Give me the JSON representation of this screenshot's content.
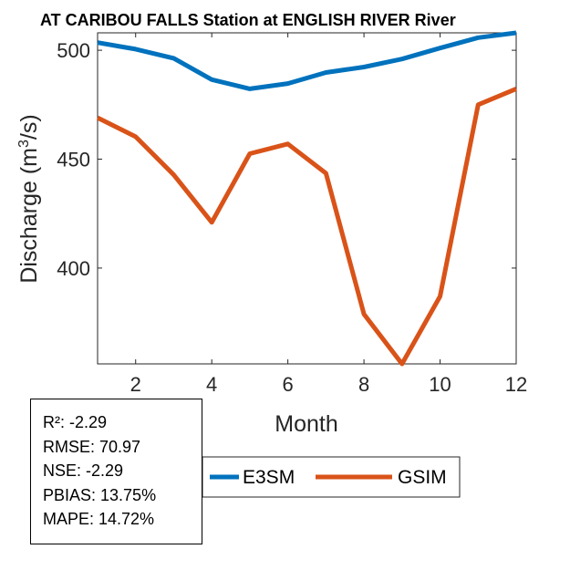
{
  "chart_data": {
    "type": "line",
    "title": "AT CARIBOU FALLS  Station at  ENGLISH RIVER  River",
    "xlabel": "Month",
    "ylabel_main": "Discharge (m",
    "ylabel_sup": "3",
    "ylabel_tail": "/s)",
    "xlim": [
      1,
      12
    ],
    "ylim": [
      356,
      508
    ],
    "xticks": [
      2,
      4,
      6,
      8,
      10,
      12
    ],
    "yticks": [
      400,
      450,
      500
    ],
    "grid": false,
    "legend_position": "bottom-center",
    "x": [
      1,
      2,
      3,
      4,
      5,
      6,
      7,
      8,
      9,
      10,
      11,
      12
    ],
    "series": [
      {
        "name": "E3SM",
        "color": "#0072BD",
        "values": [
          503.5,
          500.5,
          496.3,
          486.5,
          482.3,
          484.7,
          489.8,
          492.3,
          496.0,
          501.0,
          505.8,
          508.0
        ]
      },
      {
        "name": "GSIM",
        "color": "#D95319",
        "values": [
          469.0,
          460.3,
          442.8,
          421.0,
          452.5,
          457.0,
          443.5,
          378.8,
          356.0,
          387.0,
          475.0,
          482.3
        ]
      }
    ]
  },
  "stats": {
    "r2": "R²: -2.29",
    "rmse": "RMSE: 70.97",
    "nse": "NSE: -2.29",
    "pbias": "PBIAS: 13.75%",
    "mape": "MAPE: 14.72%"
  }
}
